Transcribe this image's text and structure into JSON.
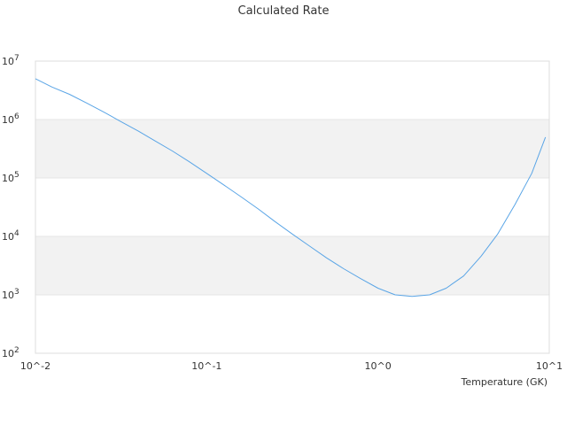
{
  "chart_data": {
    "type": "line",
    "title": "Calculated Rate",
    "xlabel": "Temperature (GK)",
    "ylabel": "",
    "x_scale": "log",
    "y_scale": "log",
    "xlim": [
      0.01,
      10
    ],
    "ylim": [
      100,
      10000000
    ],
    "x_ticks": [
      {
        "value": 0.01,
        "label": "10^-2"
      },
      {
        "value": 0.1,
        "label": "10^-1"
      },
      {
        "value": 1,
        "label": "10^0"
      },
      {
        "value": 10,
        "label": "10^1"
      }
    ],
    "y_ticks": [
      {
        "value": 100,
        "base": "10",
        "exp": "2"
      },
      {
        "value": 1000,
        "base": "10",
        "exp": "3"
      },
      {
        "value": 10000,
        "base": "10",
        "exp": "4"
      },
      {
        "value": 100000,
        "base": "10",
        "exp": "5"
      },
      {
        "value": 1000000,
        "base": "10",
        "exp": "6"
      },
      {
        "value": 10000000,
        "base": "10",
        "exp": "7"
      }
    ],
    "grid": "horizontal alternating bands",
    "colors": {
      "line": "#5aa5e6",
      "band": "#f2f2f2",
      "frame": "#dddddd",
      "text": "#333333"
    },
    "series": [
      {
        "x": [
          0.01,
          0.0125,
          0.0158,
          0.02,
          0.025,
          0.0316,
          0.04,
          0.05,
          0.063,
          0.079,
          0.1,
          0.126,
          0.158,
          0.2,
          0.25,
          0.316,
          0.4,
          0.5,
          0.63,
          0.79,
          1.0,
          1.26,
          1.58,
          2.0,
          2.5,
          3.16,
          4.0,
          5.0,
          6.3,
          7.9,
          9.5
        ],
        "y": [
          5000000,
          3600000,
          2700000,
          1900000,
          1350000,
          920000,
          630000,
          430000,
          290000,
          190000,
          120000,
          76000,
          48000,
          29500,
          18000,
          11000,
          6800,
          4300,
          2800,
          1900,
          1300,
          1000,
          940,
          1000,
          1300,
          2100,
          4600,
          11000,
          35000,
          120000,
          500000
        ]
      }
    ]
  }
}
